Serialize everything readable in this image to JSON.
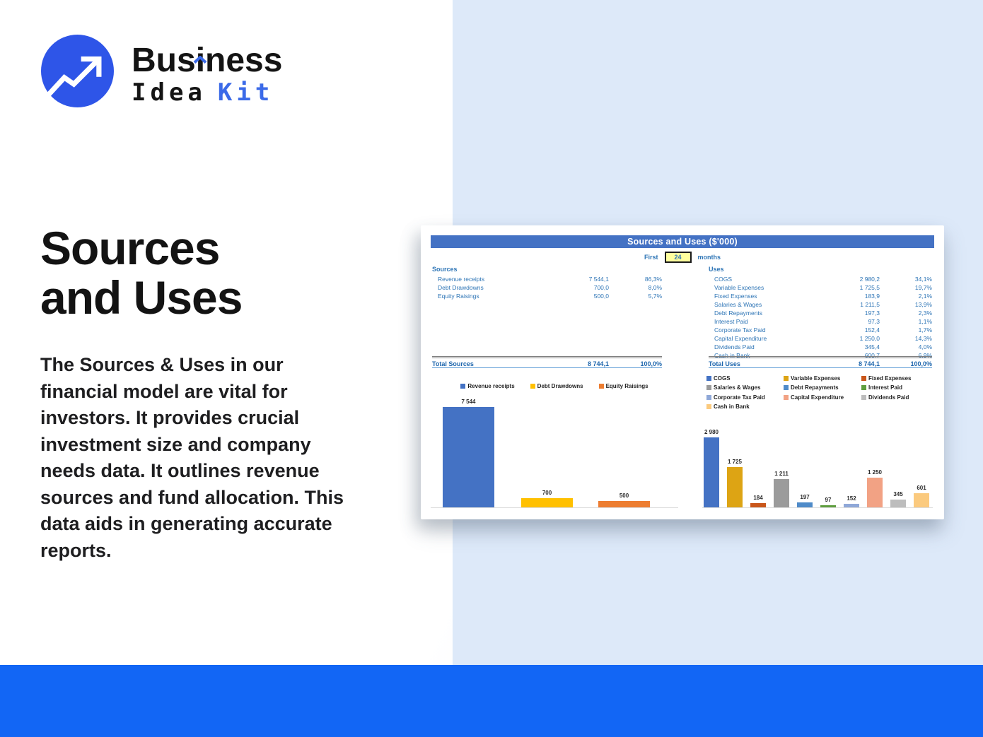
{
  "brand": {
    "name_part1": "Bus",
    "name_i": "i",
    "name_part2": "ness",
    "subtitle_dark": "Idea",
    "subtitle_accent": "Kit",
    "accent_color": "#3b6ae8"
  },
  "hero": {
    "title_line1": "Sources",
    "title_line2": "and Uses",
    "description": "The Sources & Uses in our financial model are vital for investors. It provides crucial investment size and company needs data. It outlines revenue sources and fund allocation. This data aids in generating accurate reports."
  },
  "dashboard": {
    "title": "Sources and Uses ($'000)",
    "period": {
      "label_before": "First",
      "value": "24",
      "label_after": "months"
    },
    "sources": {
      "heading": "Sources",
      "rows": [
        {
          "label": "Revenue receipts",
          "value": "7 544,1",
          "pct": "86,3%"
        },
        {
          "label": "Debt Drawdowns",
          "value": "700,0",
          "pct": "8,0%"
        },
        {
          "label": "Equity Raisings",
          "value": "500,0",
          "pct": "5,7%"
        }
      ],
      "total": {
        "label": "Total Sources",
        "value": "8 744,1",
        "pct": "100,0%"
      }
    },
    "uses": {
      "heading": "Uses",
      "rows": [
        {
          "label": "COGS",
          "value": "2 980,2",
          "pct": "34,1%"
        },
        {
          "label": "Variable Expenses",
          "value": "1 725,5",
          "pct": "19,7%"
        },
        {
          "label": "Fixed Expenses",
          "value": "183,9",
          "pct": "2,1%"
        },
        {
          "label": "Salaries & Wages",
          "value": "1 211,5",
          "pct": "13,9%"
        },
        {
          "label": "Debt Repayments",
          "value": "197,3",
          "pct": "2,3%"
        },
        {
          "label": "Interest Paid",
          "value": "97,3",
          "pct": "1,1%"
        },
        {
          "label": "Corporate Tax Paid",
          "value": "152,4",
          "pct": "1,7%"
        },
        {
          "label": "Capital Expenditure",
          "value": "1 250,0",
          "pct": "14,3%"
        },
        {
          "label": "Dividends Paid",
          "value": "345,4",
          "pct": "4,0%"
        },
        {
          "label": "Cash in Bank",
          "value": "600,7",
          "pct": "6,9%"
        }
      ],
      "total": {
        "label": "Total Uses",
        "value": "8 744,1",
        "pct": "100,0%"
      }
    }
  },
  "chart_data": [
    {
      "type": "bar",
      "title": "",
      "categories": [
        "Revenue receipts",
        "Debt Drawdowns",
        "Equity Raisings"
      ],
      "values": [
        7544,
        700,
        500
      ],
      "labels": [
        "7 544",
        "700",
        "500"
      ],
      "colors": [
        "#4472c4",
        "#ffc000",
        "#ed7d31"
      ],
      "ylim": [
        0,
        8000
      ],
      "grid": false,
      "legend_position": "top"
    },
    {
      "type": "bar",
      "title": "",
      "categories": [
        "COGS",
        "Variable Expenses",
        "Fixed Expenses",
        "Salaries & Wages",
        "Debt Repayments",
        "Interest Paid",
        "Corporate Tax Paid",
        "Capital Expenditure",
        "Dividends Paid",
        "Cash in Bank"
      ],
      "values": [
        2980,
        1725,
        184,
        1211,
        197,
        97,
        152,
        1250,
        345,
        601
      ],
      "labels": [
        "2 980",
        "1 725",
        "184",
        "1 211",
        "197",
        "97",
        "152",
        "1 250",
        "345",
        "601"
      ],
      "colors": [
        "#4472c4",
        "#dda414",
        "#c9561a",
        "#9b9b9b",
        "#4f8bc9",
        "#5f9e3f",
        "#8fa8d8",
        "#f2a284",
        "#bdbdbd",
        "#fbca7e"
      ],
      "ylim": [
        0,
        3100
      ],
      "grid": false,
      "legend_position": "top"
    }
  ]
}
